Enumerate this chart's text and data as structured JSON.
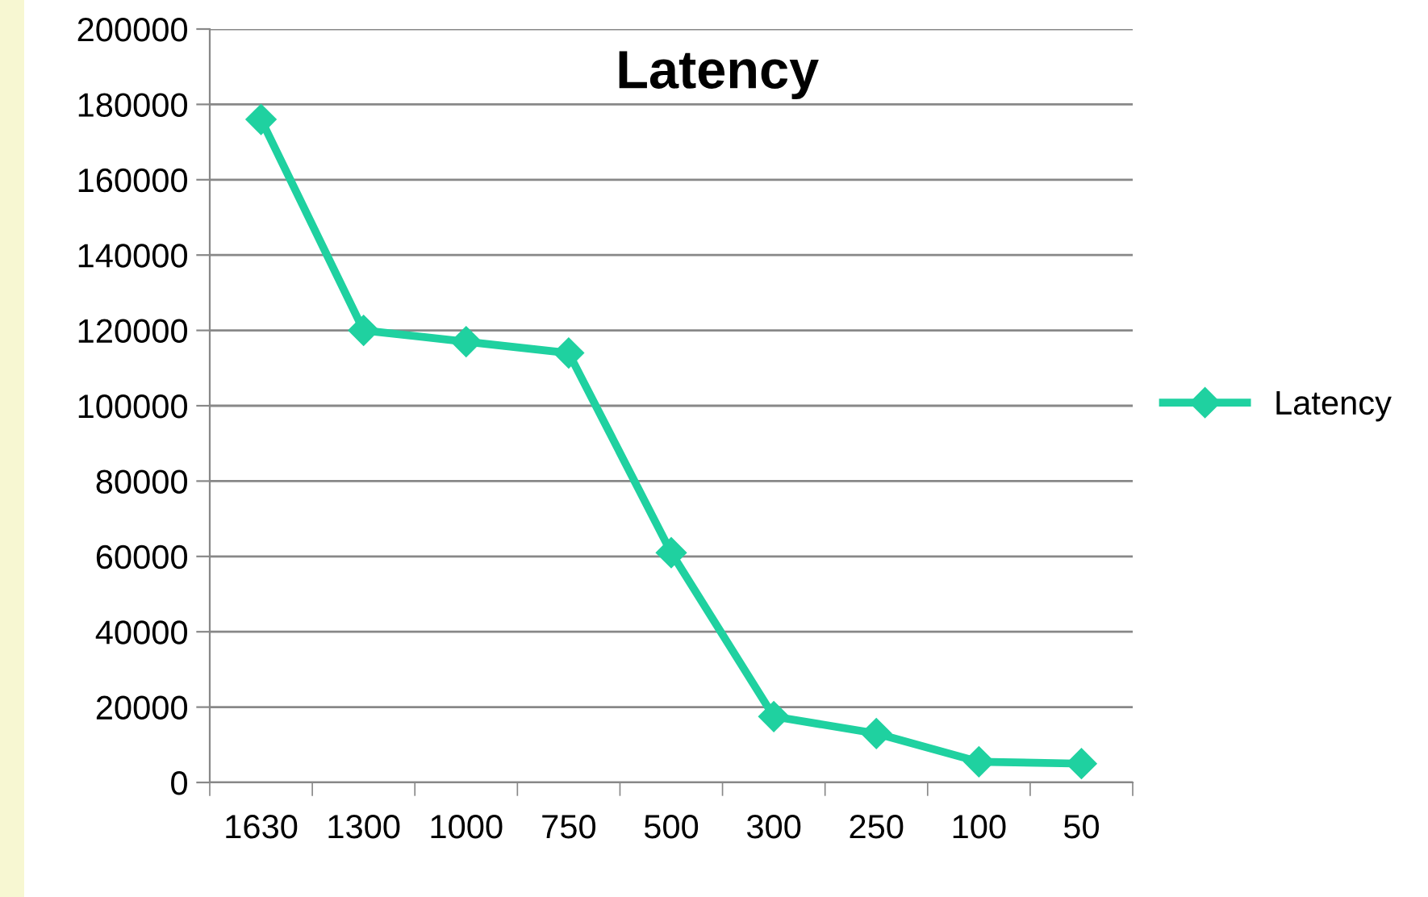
{
  "chart_data": {
    "type": "line",
    "title": "Latency",
    "categories": [
      "1630",
      "1300",
      "1000",
      "750",
      "500",
      "300",
      "250",
      "100",
      "50"
    ],
    "series": [
      {
        "name": "Latency",
        "color": "#1fd1a0",
        "values": [
          176000,
          120000,
          117000,
          114000,
          61000,
          17500,
          13000,
          5500,
          5000
        ]
      }
    ],
    "ylim": [
      0,
      200000
    ],
    "yticks": [
      0,
      20000,
      40000,
      60000,
      80000,
      100000,
      120000,
      140000,
      160000,
      180000,
      200000
    ],
    "grid": "y",
    "legend": "right",
    "marker": "diamond",
    "line_style": "solid"
  }
}
